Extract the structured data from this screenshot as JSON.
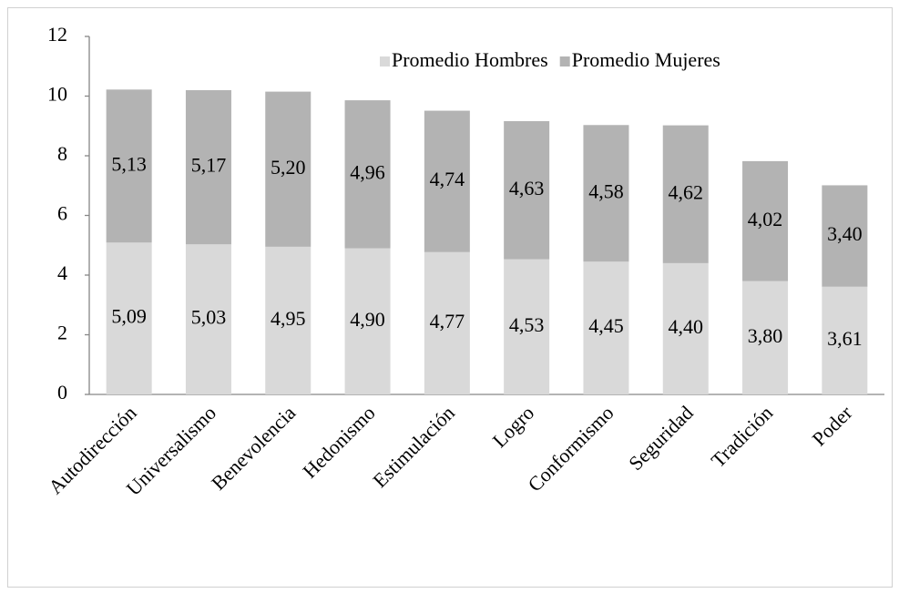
{
  "chart_data": {
    "type": "stacked_bar",
    "categories": [
      "Autodirección",
      "Universalismo",
      "Benevolencia",
      "Hedonismo",
      "Estimulación",
      "Logro",
      "Conformismo",
      "Seguridad",
      "Tradición",
      "Poder"
    ],
    "series": [
      {
        "name": "Promedio Hombres",
        "color": "#d9d9d9",
        "values": [
          5.09,
          5.03,
          4.95,
          4.9,
          4.77,
          4.53,
          4.45,
          4.4,
          3.8,
          3.61
        ],
        "value_labels": [
          "5,09",
          "5,03",
          "4,95",
          "4,90",
          "4,77",
          "4,53",
          "4,45",
          "4,40",
          "3,80",
          "3,61"
        ]
      },
      {
        "name": "Promedio Mujeres",
        "color": "#b3b3b3",
        "values": [
          5.13,
          5.17,
          5.2,
          4.96,
          4.74,
          4.63,
          4.58,
          4.62,
          4.02,
          3.4
        ],
        "value_labels": [
          "5,13",
          "5,17",
          "5,20",
          "4,96",
          "4,74",
          "4,63",
          "4,58",
          "4,62",
          "4,02",
          "3,40"
        ]
      }
    ],
    "ylim": [
      0,
      12
    ],
    "yticks": [
      0,
      2,
      4,
      6,
      8,
      10,
      12
    ],
    "legend": "top-right"
  }
}
